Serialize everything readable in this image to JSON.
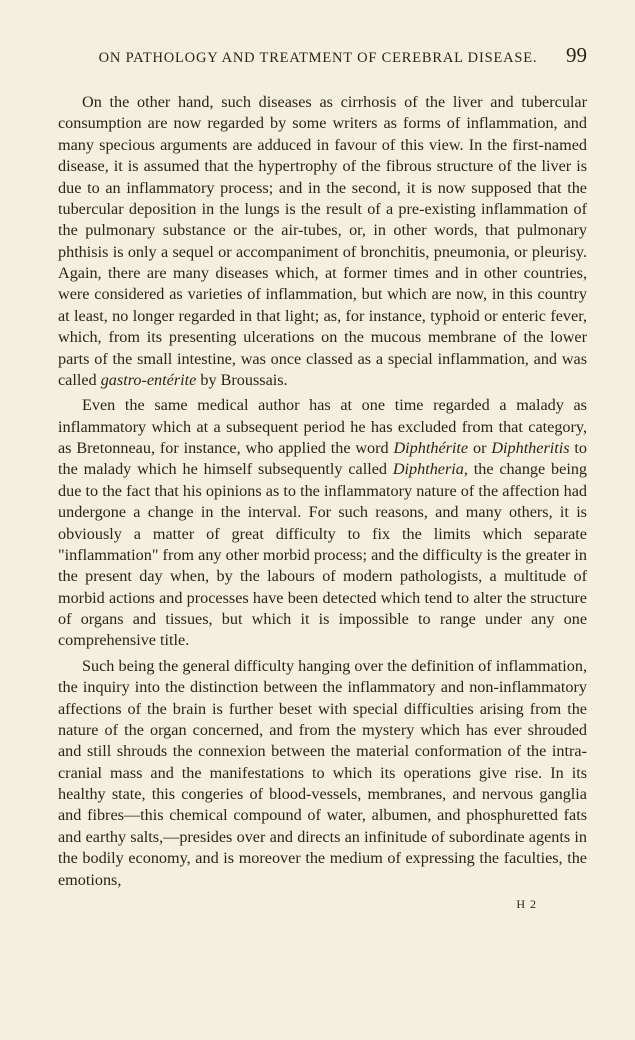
{
  "header": {
    "title": "ON PATHOLOGY AND TREATMENT OF CEREBRAL DISEASE.",
    "page_number": "99"
  },
  "paragraphs": {
    "p1_part1": "On the other hand, such diseases as cirrhosis of the liver and tubercular consumption are now regarded by some writers as forms of inflammation, and many specious arguments are adduced in favour of this view. In the first-named disease, it is assumed that the hypertrophy of the fibrous structure of the liver is due to an inflammatory process; and in the second, it is now supposed that the tubercular deposition in the lungs is the result of a pre-existing inflammation of the pulmonary substance or the air-tubes, or, in other words, that pulmonary phthisis is only a sequel or accompaniment of bronchitis, pneumonia, or pleurisy. Again, there are many diseases which, at former times and in other countries, were considered as varieties of inflammation, but which are now, in this country at least, no longer regarded in that light; as, for instance, typhoid or enteric fever, which, from its presenting ulcerations on the mucous membrane of the lower parts of the small intestine, was once classed as a special inflammation, and was called ",
    "p1_italic1": "gastro-entérite",
    "p1_part2": " by Broussais.",
    "p2_part1": "Even the same medical author has at one time regarded a malady as inflammatory which at a subsequent period he has excluded from that category, as Bretonneau, for instance, who applied the word ",
    "p2_italic1": "Diphthérite",
    "p2_part2": " or ",
    "p2_italic2": "Diphtheritis",
    "p2_part3": " to the malady which he himself subsequently called ",
    "p2_italic3": "Diphtheria",
    "p2_part4": ", the change being due to the fact that his opinions as to the inflammatory nature of the affection had undergone a change in the interval. For such reasons, and many others, it is obviously a matter of great difficulty to fix the limits which separate \"inflammation\" from any other morbid process; and the difficulty is the greater in the present day when, by the labours of modern pathologists, a multitude of morbid actions and processes have been detected which tend to alter the structure of organs and tissues, but which it is impossible to range under any one comprehensive title.",
    "p3": "Such being the general difficulty hanging over the definition of inflammation, the inquiry into the distinction between the inflammatory and non-inflammatory affections of the brain is further beset with special difficulties arising from the nature of the organ concerned, and from the mystery which has ever shrouded and still shrouds the connexion between the material conformation of the intra-cranial mass and the manifestations to which its operations give rise. In its healthy state, this congeries of blood-vessels, membranes, and nervous ganglia and fibres—this chemical compound of water, albumen, and phosphuretted fats and earthy salts,—presides over and directs an infinitude of subordinate agents in the bodily economy, and is moreover the medium of expressing the faculties, the emotions,"
  },
  "footer": {
    "signature": "H 2"
  },
  "colors": {
    "background": "#f5efe0",
    "text": "#2a2518"
  },
  "typography": {
    "body_font_size": 16.2,
    "header_font_size": 14.5,
    "page_number_font_size": 21,
    "line_height": 1.32,
    "font_family": "Times New Roman"
  }
}
